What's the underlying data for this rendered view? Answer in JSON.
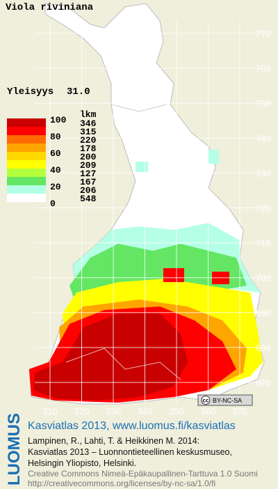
{
  "title": "Viola riviniana",
  "frequency": {
    "label": "Yleisyys",
    "value": "31.0"
  },
  "legend": {
    "count_header": "lkm",
    "scale_labels": [
      100,
      80,
      60,
      40,
      20,
      0
    ],
    "levels": [
      {
        "color": "#c80000",
        "count": 346
      },
      {
        "color": "#ff0000",
        "count": 315
      },
      {
        "color": "#ff6a00",
        "count": 220
      },
      {
        "color": "#ffa500",
        "count": 178
      },
      {
        "color": "#ffd800",
        "count": 200
      },
      {
        "color": "#ffff00",
        "count": 209
      },
      {
        "color": "#b4ff3c",
        "count": 127
      },
      {
        "color": "#64e664",
        "count": 167
      },
      {
        "color": "#b4ffe6",
        "count": 206
      },
      {
        "color": "#ffffff",
        "count": 548
      }
    ]
  },
  "grid": {
    "northing": [
      770,
      760,
      750,
      740,
      730,
      720,
      710,
      700,
      690,
      680,
      670
    ],
    "easting": [
      310,
      320,
      330,
      340,
      350,
      360,
      370
    ]
  },
  "license_badge": {
    "icon": "cc",
    "text": "BY-NC-SA"
  },
  "footer": {
    "brand": "LUOMUS",
    "link": "Kasviatlas 2013, www.luomus.fi/kasviatlas",
    "citation": [
      "Lampinen, R., Lahti, T. & Heikkinen M. 2014:",
      "Kasviatlas 2013 – Luonnontieteellinen keskusmuseo,",
      "Helsingin Yliopisto, Helsinki."
    ],
    "license": [
      "Creative Commons Nimeä-Epäkaupallinen-Tarttuva 1.0 Suomi",
      "http://creativecommons.org/licenses/by-nc-sa/1.0/fi"
    ]
  }
}
